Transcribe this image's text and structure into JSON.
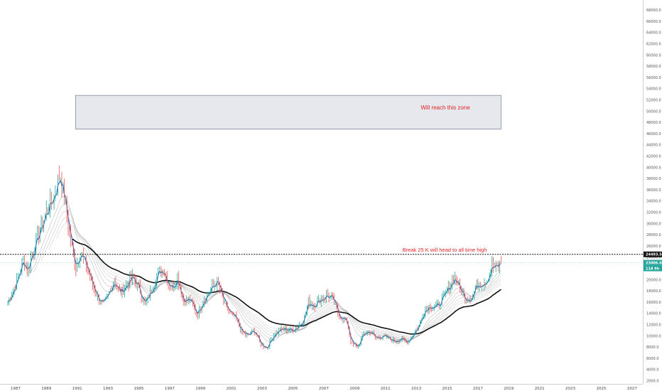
{
  "colors": {
    "up": "#26a69a",
    "down": "#ef5350",
    "ema_fast": "#1565c0",
    "ema_slow": "#111111",
    "ema_mid": "#9e9e9e",
    "zone_fill": "#e6e8ee",
    "zone_stroke": "#7f8c9a",
    "annotation": "#e02424",
    "resistance": "#111111",
    "last_price_bg": "#26a69a",
    "resistance_label_bg": "#111111"
  },
  "chart_data": {
    "type": "candlestick",
    "x_axis": {
      "min": 1986.5,
      "max": 2018.5,
      "tick_labels": [
        "1987",
        "1989",
        "1991",
        "1993",
        "1995",
        "1997",
        "1999",
        "2001",
        "2003",
        "2005",
        "2007",
        "2009",
        "2011",
        "2013",
        "2015",
        "2017",
        "2019",
        "2021",
        "2023",
        "2025",
        "2027"
      ]
    },
    "y_axis": {
      "min": 1500,
      "max": 68500,
      "position": "right",
      "tick_labels": [
        "2000.0",
        "4000.0",
        "6000.0",
        "8000.0",
        "10000.0",
        "12000.0",
        "14000.0",
        "16000.0",
        "18000.0",
        "20000.0",
        "22000.0",
        "24000.0",
        "26000.0",
        "28000.0",
        "30000.0",
        "32000.0",
        "34000.0",
        "36000.0",
        "38000.0",
        "40000.0",
        "42000.0",
        "44000.0",
        "46000.0",
        "48000.0",
        "50000.0",
        "52000.0",
        "54000.0",
        "56000.0",
        "58000.0",
        "60000.0",
        "62000.0",
        "64000.0",
        "66000.0",
        "68000.0"
      ]
    },
    "series_close": [
      [
        1986.5,
        16000
      ],
      [
        1987.0,
        19000
      ],
      [
        1987.5,
        23500
      ],
      [
        1987.8,
        21500
      ],
      [
        1988.0,
        24000
      ],
      [
        1988.5,
        28000
      ],
      [
        1989.0,
        32000
      ],
      [
        1989.5,
        35000
      ],
      [
        1989.9,
        38900
      ],
      [
        1990.3,
        32000
      ],
      [
        1990.7,
        25000
      ],
      [
        1990.9,
        22000
      ],
      [
        1991.2,
        25000
      ],
      [
        1991.6,
        22500
      ],
      [
        1992.0,
        19000
      ],
      [
        1992.4,
        16500
      ],
      [
        1992.7,
        15500
      ],
      [
        1993.0,
        17000
      ],
      [
        1993.4,
        20000
      ],
      [
        1993.8,
        17500
      ],
      [
        1994.2,
        19000
      ],
      [
        1994.6,
        20500
      ],
      [
        1995.0,
        18500
      ],
      [
        1995.4,
        15500
      ],
      [
        1995.8,
        18000
      ],
      [
        1996.3,
        21500
      ],
      [
        1996.6,
        21800
      ],
      [
        1996.9,
        19500
      ],
      [
        1997.2,
        18500
      ],
      [
        1997.5,
        20500
      ],
      [
        1997.9,
        16000
      ],
      [
        1998.3,
        16500
      ],
      [
        1998.8,
        13800
      ],
      [
        1999.2,
        16500
      ],
      [
        1999.6,
        18000
      ],
      [
        2000.1,
        19800
      ],
      [
        2000.5,
        16000
      ],
      [
        2000.9,
        14000
      ],
      [
        2001.3,
        13000
      ],
      [
        2001.7,
        10500
      ],
      [
        2002.1,
        10000
      ],
      [
        2002.5,
        11000
      ],
      [
        2002.9,
        8500
      ],
      [
        2003.3,
        7800
      ],
      [
        2003.7,
        10000
      ],
      [
        2004.1,
        11000
      ],
      [
        2004.5,
        11200
      ],
      [
        2004.9,
        11000
      ],
      [
        2005.3,
        11500
      ],
      [
        2005.7,
        13000
      ],
      [
        2006.0,
        16000
      ],
      [
        2006.4,
        15500
      ],
      [
        2006.8,
        16500
      ],
      [
        2007.2,
        17200
      ],
      [
        2007.6,
        16500
      ],
      [
        2008.0,
        13500
      ],
      [
        2008.5,
        12500
      ],
      [
        2008.8,
        8500
      ],
      [
        2009.2,
        8000
      ],
      [
        2009.6,
        10500
      ],
      [
        2010.0,
        10800
      ],
      [
        2010.4,
        9500
      ],
      [
        2010.8,
        10000
      ],
      [
        2011.2,
        9500
      ],
      [
        2011.6,
        9000
      ],
      [
        2012.0,
        9500
      ],
      [
        2012.4,
        8800
      ],
      [
        2012.8,
        10300
      ],
      [
        2013.2,
        12000
      ],
      [
        2013.5,
        14500
      ],
      [
        2013.9,
        15500
      ],
      [
        2014.3,
        15000
      ],
      [
        2014.7,
        16500
      ],
      [
        2015.1,
        18500
      ],
      [
        2015.5,
        20500
      ],
      [
        2015.8,
        18500
      ],
      [
        2016.2,
        16500
      ],
      [
        2016.6,
        16800
      ],
      [
        2016.9,
        19000
      ],
      [
        2017.3,
        19500
      ],
      [
        2017.6,
        20000
      ],
      [
        2017.9,
        22500
      ],
      [
        2018.2,
        22000
      ],
      [
        2018.5,
        23000
      ]
    ],
    "zone": {
      "x_start": 1990.9,
      "x_end": 2018.5,
      "y_low": 46800,
      "y_high": 52800
    },
    "resistance_level": 24493.5,
    "annotations": {
      "zone_text": "Will reach this zone",
      "resistance_text": "Break 25 K will head to all time high"
    },
    "price_labels": {
      "resistance": "24493.5",
      "last_close": "23006.0",
      "countdown": "118 9h"
    }
  }
}
